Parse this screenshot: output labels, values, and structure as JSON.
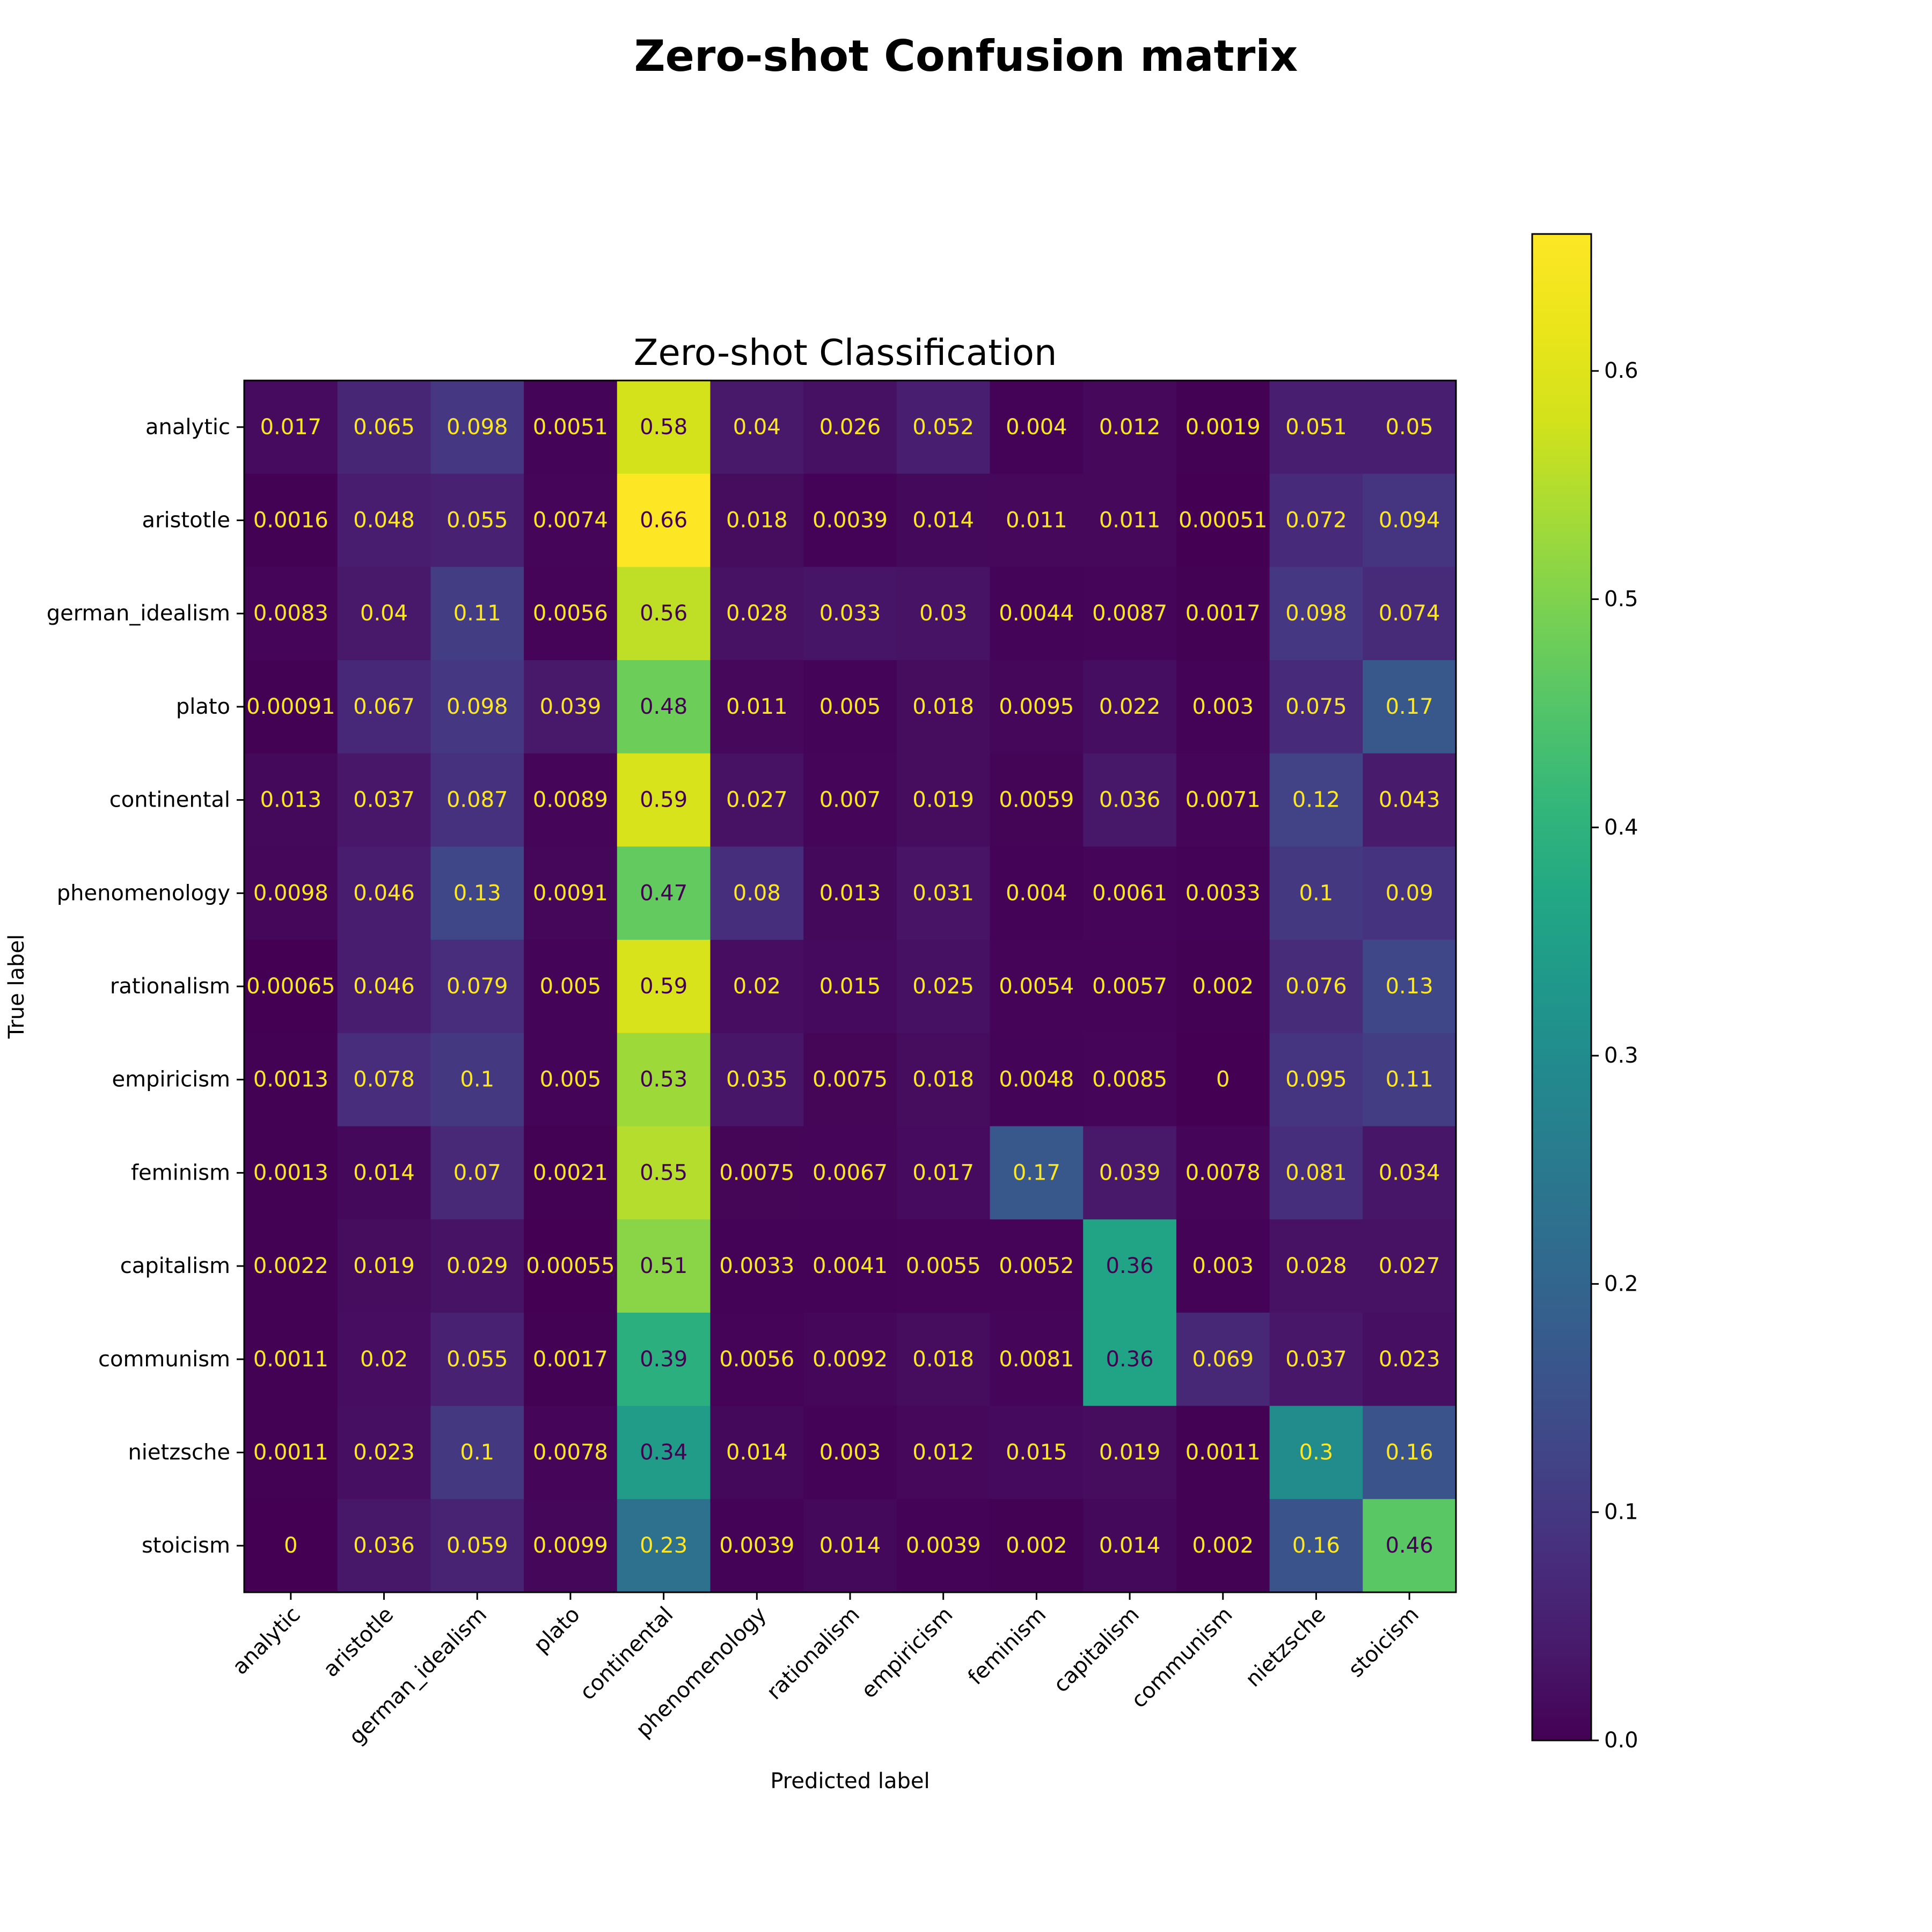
{
  "figure_title": "Zero-shot Confusion matrix",
  "chart_data": {
    "type": "heatmap",
    "title": "Zero-shot Classification",
    "xlabel": "Predicted label",
    "ylabel": "True label",
    "x_categories": [
      "analytic",
      "aristotle",
      "german_idealism",
      "plato",
      "continental",
      "phenomenology",
      "rationalism",
      "empiricism",
      "feminism",
      "capitalism",
      "communism",
      "nietzsche",
      "stoicism"
    ],
    "y_categories": [
      "analytic",
      "aristotle",
      "german_idealism",
      "plato",
      "continental",
      "phenomenology",
      "rationalism",
      "empiricism",
      "feminism",
      "capitalism",
      "communism",
      "nietzsche",
      "stoicism"
    ],
    "values": [
      [
        0.017,
        0.065,
        0.098,
        0.0051,
        0.58,
        0.04,
        0.026,
        0.052,
        0.004,
        0.012,
        0.0019,
        0.051,
        0.05
      ],
      [
        0.0016,
        0.048,
        0.055,
        0.0074,
        0.66,
        0.018,
        0.0039,
        0.014,
        0.011,
        0.011,
        0.00051,
        0.072,
        0.094
      ],
      [
        0.0083,
        0.04,
        0.11,
        0.0056,
        0.56,
        0.028,
        0.033,
        0.03,
        0.0044,
        0.0087,
        0.0017,
        0.098,
        0.074
      ],
      [
        0.00091,
        0.067,
        0.098,
        0.039,
        0.48,
        0.011,
        0.005,
        0.018,
        0.0095,
        0.022,
        0.003,
        0.075,
        0.17
      ],
      [
        0.013,
        0.037,
        0.087,
        0.0089,
        0.59,
        0.027,
        0.007,
        0.019,
        0.0059,
        0.036,
        0.0071,
        0.12,
        0.043
      ],
      [
        0.0098,
        0.046,
        0.13,
        0.0091,
        0.47,
        0.08,
        0.013,
        0.031,
        0.004,
        0.0061,
        0.0033,
        0.1,
        0.09
      ],
      [
        0.00065,
        0.046,
        0.079,
        0.005,
        0.59,
        0.02,
        0.015,
        0.025,
        0.0054,
        0.0057,
        0.002,
        0.076,
        0.13
      ],
      [
        0.0013,
        0.078,
        0.1,
        0.005,
        0.53,
        0.035,
        0.0075,
        0.018,
        0.0048,
        0.0085,
        0,
        0.095,
        0.11
      ],
      [
        0.0013,
        0.014,
        0.07,
        0.0021,
        0.55,
        0.0075,
        0.0067,
        0.017,
        0.17,
        0.039,
        0.0078,
        0.081,
        0.034
      ],
      [
        0.0022,
        0.019,
        0.029,
        0.00055,
        0.51,
        0.0033,
        0.0041,
        0.0055,
        0.0052,
        0.36,
        0.003,
        0.028,
        0.027
      ],
      [
        0.0011,
        0.02,
        0.055,
        0.0017,
        0.39,
        0.0056,
        0.0092,
        0.018,
        0.0081,
        0.36,
        0.069,
        0.037,
        0.023
      ],
      [
        0.0011,
        0.023,
        0.1,
        0.0078,
        0.34,
        0.014,
        0.003,
        0.012,
        0.015,
        0.019,
        0.0011,
        0.3,
        0.16
      ],
      [
        0,
        0.036,
        0.059,
        0.0099,
        0.23,
        0.0039,
        0.014,
        0.0039,
        0.002,
        0.014,
        0.002,
        0.16,
        0.46
      ]
    ],
    "colormap": "viridis",
    "color_range": [
      0,
      0.66
    ],
    "colorbar_ticks": [
      "0.0",
      "0.1",
      "0.2",
      "0.3",
      "0.4",
      "0.5",
      "0.6"
    ],
    "text_colors": {
      "low": "#fde725",
      "high": "#440154"
    },
    "grid": false,
    "legend": "colorbar-right"
  }
}
